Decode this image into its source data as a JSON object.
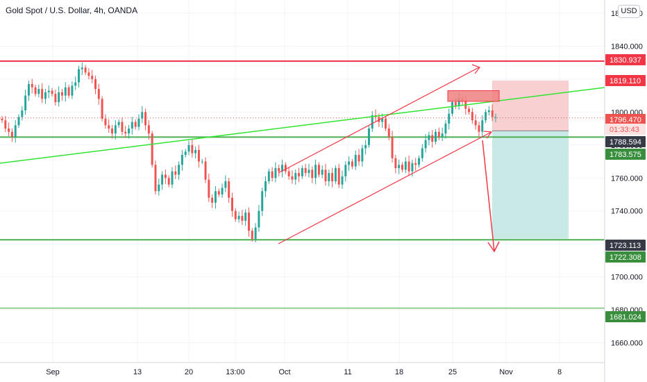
{
  "header": {
    "title": "Gold Spot / U.S. Dollar, 4h, OANDA",
    "currency_badge": "USD"
  },
  "colors": {
    "up": "#26a69a",
    "down": "#ef5350",
    "red_line": "#f23645",
    "green_line": "#4caf50",
    "bright_green": "#2ee52e",
    "loss_zone": "#f9d0d2",
    "profit_zone": "#c8e9e5"
  },
  "chart_data": {
    "type": "candlestick",
    "symbol": "XAUUSD",
    "timeframe": "4h",
    "ylim": [
      1648,
      1868
    ],
    "x_ticks": [
      "Sep",
      "13",
      "20",
      "13:00",
      "Oct",
      "11",
      "18",
      "25",
      "Nov",
      "8"
    ],
    "y_ticks": [
      1660,
      1680,
      1700,
      1720,
      1740,
      1760,
      1780,
      1800,
      1820,
      1840,
      1860
    ],
    "y_tick_labels": [
      "1660.000",
      "1680.000",
      "1700.000",
      "1720.000",
      "1740.000",
      "1760.000",
      "1780.000",
      "1800.000",
      "1820.000",
      "1840.000",
      "1860.000"
    ],
    "price_labels": [
      {
        "text": "1830.937",
        "value": 1830.937,
        "kind": "red"
      },
      {
        "text": "1819.110",
        "value": 1819.11,
        "kind": "red"
      },
      {
        "text": "1796.470",
        "value": 1796.47,
        "kind": "current"
      },
      {
        "text": "01:33:43",
        "value": 1791.5,
        "kind": "countdown"
      },
      {
        "text": "1788.594",
        "value": 1788.594,
        "kind": "dark"
      },
      {
        "text": "1783.575",
        "value": 1783.575,
        "kind": "green"
      },
      {
        "text": "1723.113",
        "value": 1723.113,
        "kind": "dark"
      },
      {
        "text": "1722.308",
        "value": 1722.308,
        "kind": "green"
      },
      {
        "text": "1681.024",
        "value": 1681.024,
        "kind": "green"
      }
    ],
    "horizontal_lines": [
      {
        "value": 1830.9,
        "color": "red"
      },
      {
        "value": 1784.8,
        "color": "green"
      },
      {
        "value": 1722.5,
        "color": "green"
      },
      {
        "value": 1681.0,
        "color": "green"
      }
    ],
    "close_series": [
      1795,
      1790,
      1788,
      1785,
      1792,
      1797,
      1801,
      1810,
      1817,
      1815,
      1811,
      1814,
      1808,
      1812,
      1813,
      1811,
      1806,
      1812,
      1810,
      1815,
      1810,
      1816,
      1818,
      1826,
      1827,
      1824,
      1822,
      1820,
      1814,
      1808,
      1796,
      1792,
      1790,
      1787,
      1792,
      1794,
      1788,
      1787,
      1790,
      1794,
      1791,
      1796,
      1800,
      1792,
      1787,
      1768,
      1752,
      1756,
      1762,
      1760,
      1756,
      1764,
      1762,
      1768,
      1774,
      1776,
      1780,
      1775,
      1777,
      1770,
      1770,
      1759,
      1748,
      1745,
      1752,
      1750,
      1754,
      1758,
      1748,
      1740,
      1735,
      1737,
      1734,
      1739,
      1728,
      1723,
      1730,
      1740,
      1752,
      1758,
      1764,
      1760,
      1766,
      1764,
      1768,
      1764,
      1761,
      1759,
      1763,
      1761,
      1766,
      1763,
      1765,
      1760,
      1768,
      1762,
      1765,
      1758,
      1763,
      1758,
      1766,
      1756,
      1761,
      1768,
      1770,
      1767,
      1774,
      1770,
      1778,
      1780,
      1790,
      1798,
      1797,
      1794,
      1796,
      1790,
      1785,
      1772,
      1766,
      1768,
      1765,
      1770,
      1764,
      1769,
      1768,
      1772,
      1778,
      1783,
      1786,
      1782,
      1788,
      1785,
      1787,
      1793,
      1799,
      1806,
      1804,
      1808,
      1807,
      1802,
      1800,
      1795,
      1792,
      1788,
      1795,
      1800,
      1801,
      1797,
      1797
    ]
  }
}
